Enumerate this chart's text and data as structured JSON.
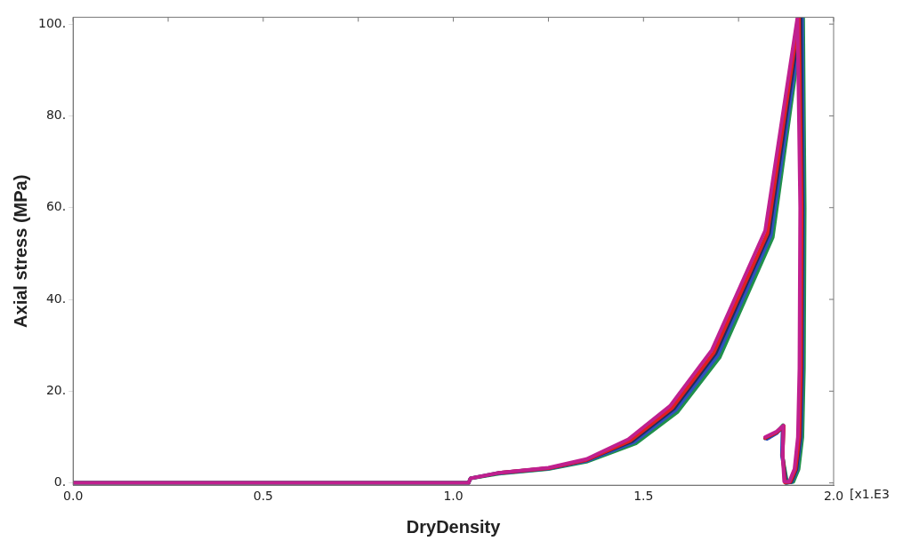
{
  "chart_data": {
    "type": "line",
    "xlabel": "DryDensity",
    "ylabel": "Axial stress (MPa)",
    "annotations": [
      "[x1.E3"
    ],
    "xlim": [
      0,
      2
    ],
    "xticks": [
      {
        "value": 0,
        "label": "0.0"
      },
      {
        "value": 0.25,
        "label": null
      },
      {
        "value": 0.5,
        "label": "0.5"
      },
      {
        "value": 0.75,
        "label": null
      },
      {
        "value": 1,
        "label": "1.0"
      },
      {
        "value": 1.25,
        "label": null
      },
      {
        "value": 1.5,
        "label": "1.5"
      },
      {
        "value": 1.75,
        "label": null
      },
      {
        "value": 2,
        "label": "2.0"
      }
    ],
    "ylim": [
      -0.5,
      101.5
    ],
    "yticks": [
      {
        "value": 0,
        "label": "0."
      },
      {
        "value": 20,
        "label": "20."
      },
      {
        "value": 40,
        "label": "40."
      },
      {
        "value": 60,
        "label": "60."
      },
      {
        "value": 80,
        "label": "80."
      },
      {
        "value": 100,
        "label": "100."
      }
    ],
    "grid": false,
    "legend": false,
    "marker": "none",
    "line_style": "solid",
    "series": [
      {
        "color": "#c0208f",
        "x": [
          0,
          1.04,
          1.045,
          1.12,
          1.25,
          1.35,
          1.46,
          1.57,
          1.68,
          1.82,
          1.905,
          1.912,
          1.91,
          1.906,
          1.897,
          1.883,
          1.87,
          1.866,
          1.868,
          1.85,
          1.82
        ],
        "values": [
          0,
          0,
          1,
          2.2,
          3.3,
          5.2,
          9.5,
          16.8,
          29,
          55,
          101.5,
          60,
          25,
          10,
          3,
          0.2,
          0.3,
          6,
          12.5,
          11.2,
          10
        ]
      },
      {
        "color": "#e02020",
        "x": [
          1.12,
          1.25,
          1.35,
          1.465,
          1.575,
          1.685,
          1.826,
          1.909,
          1.916,
          1.914,
          1.91,
          1.9,
          1.886,
          1.872,
          1.866,
          1.869,
          1.85,
          1.82
        ],
        "values": [
          2.2,
          3.2,
          5,
          9.2,
          16.3,
          28.4,
          54.4,
          101.5,
          60,
          25,
          10,
          3,
          0.2,
          0.1,
          6,
          12.4,
          11,
          9.8
        ]
      },
      {
        "color": "#1f2d5c",
        "x": [
          0,
          1.04,
          1.045,
          1.12,
          1.25,
          1.35,
          1.47,
          1.58,
          1.69,
          1.83,
          1.913,
          1.918,
          1.916,
          1.912,
          1.902,
          1.888,
          1.874,
          1.866,
          1.868,
          1.85,
          1.82
        ],
        "values": [
          0,
          0,
          1,
          2.2,
          3.2,
          5,
          9.1,
          16.2,
          28.3,
          54.4,
          101.5,
          60,
          25,
          10,
          3,
          0.2,
          0,
          6,
          12.3,
          11,
          9.7
        ]
      },
      {
        "color": "#3050c0",
        "x": [
          1.12,
          1.25,
          1.35,
          1.475,
          1.585,
          1.695,
          1.835,
          1.917,
          1.92,
          1.918,
          1.914,
          1.904,
          1.89,
          1.876,
          1.864,
          1.866,
          1.85,
          1.825
        ],
        "values": [
          2.1,
          3.1,
          4.8,
          8.9,
          15.9,
          27.8,
          54,
          101.5,
          60,
          25,
          10,
          3,
          0.2,
          0,
          6,
          12.2,
          10.8,
          9.6
        ]
      },
      {
        "color": "#20904a",
        "x": [
          0,
          1.04,
          1.045,
          1.12,
          1.25,
          1.35,
          1.48,
          1.59,
          1.7,
          1.84,
          1.92,
          1.924,
          1.922,
          1.918,
          1.908,
          1.894,
          1.878,
          1.865,
          1.867,
          1.85,
          1.83
        ],
        "values": [
          0,
          0,
          1,
          2,
          3,
          4.6,
          8.6,
          15.5,
          27.3,
          53.5,
          101.5,
          60,
          25,
          10,
          3,
          0.2,
          0,
          6,
          12.6,
          11,
          9.9
        ]
      }
    ]
  }
}
